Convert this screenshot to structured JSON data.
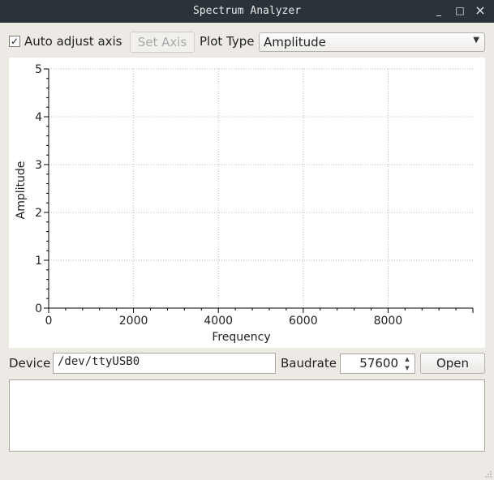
{
  "window": {
    "title": "Spectrum Analyzer",
    "controls": {
      "minimize": "_",
      "maximize": "□",
      "close": "×"
    }
  },
  "toolbar": {
    "auto_adjust_label": "Auto adjust axis",
    "auto_adjust_checked": true,
    "check_mark": "✓",
    "set_axis_label": "Set Axis",
    "plot_type_label": "Plot Type",
    "plot_type_value": "Amplitude",
    "dropdown_arrow": "▼"
  },
  "chart_data": {
    "type": "line",
    "series": [],
    "xlabel": "Frequency",
    "ylabel": "Amplitude",
    "xlim": [
      0,
      10000
    ],
    "ylim": [
      0,
      5
    ],
    "xticks": [
      "0",
      "2000",
      "4000",
      "6000",
      "8000"
    ],
    "yticks": [
      "0",
      "1",
      "2",
      "3",
      "4",
      "5"
    ],
    "grid": true
  },
  "serial": {
    "device_label": "Device",
    "device_value": "/dev/ttyUSB0",
    "baudrate_label": "Baudrate",
    "baudrate_value": "57600",
    "spin_up": "▲",
    "spin_down": "▼",
    "open_label": "Open"
  },
  "console": {
    "text": ""
  }
}
